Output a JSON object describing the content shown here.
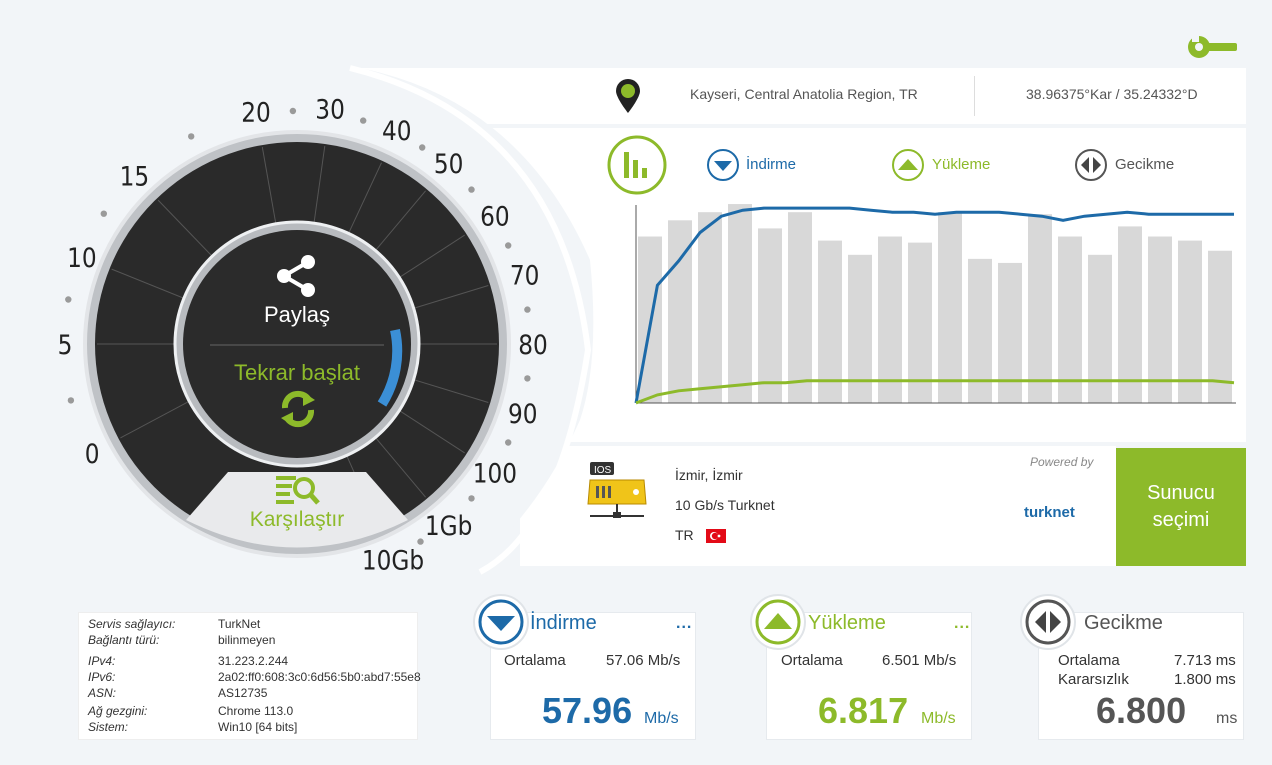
{
  "location": {
    "city": "Kayseri, Central Anatolia Region, TR",
    "coords": "38.96375°Kar / 35.24332°D"
  },
  "legend": {
    "download": "İndirme",
    "upload": "Yükleme",
    "latency": "Gecikme"
  },
  "gauge": {
    "share_label": "Paylaş",
    "restart_label": "Tekrar başlat",
    "compare_label": "Karşılaştır",
    "ticks": [
      "0",
      "5",
      "10",
      "15",
      "20",
      "30",
      "40",
      "50",
      "60",
      "70",
      "80",
      "90",
      "100",
      "1Gb",
      "10Gb"
    ]
  },
  "server": {
    "city": "İzmir, İzmir",
    "provider": "10 Gb/s Turknet",
    "country": "TR",
    "powered_by": "Powered by",
    "logo_text": "turknet",
    "select_button": "Sunucu seçimi"
  },
  "info": {
    "rows": [
      {
        "k": "Servis sağlayıcı:",
        "v": "TurkNet"
      },
      {
        "k": "Bağlantı türü:",
        "v": "bilinmeyen"
      },
      {
        "k": "IPv4:",
        "v": "31.223.2.244"
      },
      {
        "k": "IPv6:",
        "v": "2a02:ff0:608:3c0:6d56:5b0:abd7:55e8"
      },
      {
        "k": "ASN:",
        "v": "AS12735"
      },
      {
        "k": "Ağ gezgini:",
        "v": "Chrome 113.0"
      },
      {
        "k": "Sistem:",
        "v": "Win10 [64 bits]"
      }
    ]
  },
  "download_card": {
    "title": "İndirme",
    "avg_label": "Ortalama",
    "avg_value": "57.06 Mb/s",
    "value": "57.96",
    "unit": "Mb/s",
    "dots": "..."
  },
  "upload_card": {
    "title": "Yükleme",
    "avg_label": "Ortalama",
    "avg_value": "6.501 Mb/s",
    "value": "6.817",
    "unit": "Mb/s",
    "dots": "..."
  },
  "latency_card": {
    "title": "Gecikme",
    "avg_label": "Ortalama",
    "avg_value": "7.713 ms",
    "jitter_label": "Kararsızlık",
    "jitter_value": "1.800 ms",
    "value": "6.800",
    "unit": "ms"
  },
  "colors": {
    "blue": "#1d6aa8",
    "green": "#8dba2a",
    "grey_bar": "#d8d8d8",
    "gauge_dark": "#2a2a2a"
  },
  "chart_data": {
    "type": "bar",
    "bars": [
      0.82,
      0.9,
      0.94,
      0.98,
      0.86,
      0.94,
      0.8,
      0.73,
      0.82,
      0.79,
      0.94,
      0.71,
      0.69,
      0.93,
      0.82,
      0.73,
      0.87,
      0.82,
      0.8,
      0.75
    ],
    "download_line": [
      0.0,
      0.58,
      0.7,
      0.84,
      0.92,
      0.95,
      0.96,
      0.96,
      0.96,
      0.96,
      0.96,
      0.95,
      0.94,
      0.94,
      0.93,
      0.94,
      0.94,
      0.94,
      0.93,
      0.92,
      0.9,
      0.92,
      0.93,
      0.94,
      0.93,
      0.93,
      0.93,
      0.93,
      0.93
    ],
    "upload_line": [
      0.0,
      0.04,
      0.06,
      0.07,
      0.08,
      0.09,
      0.1,
      0.1,
      0.11,
      0.11,
      0.11,
      0.11,
      0.11,
      0.11,
      0.11,
      0.11,
      0.11,
      0.11,
      0.11,
      0.11,
      0.11,
      0.11,
      0.11,
      0.11,
      0.11,
      0.11,
      0.11,
      0.11,
      0.1
    ]
  }
}
